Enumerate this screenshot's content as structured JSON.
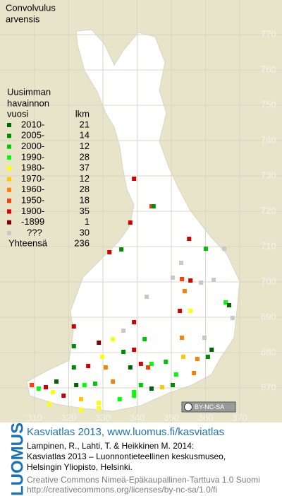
{
  "title": [
    "Convolvulus",
    "arvensis"
  ],
  "legend": {
    "heading": [
      "Uusimman",
      "havainnon",
      "vuosi"
    ],
    "count_heading": "lkm",
    "items": [
      {
        "label": "2010-",
        "count": 21,
        "color": "#006400"
      },
      {
        "label": "2005-",
        "count": 14,
        "color": "#008c00"
      },
      {
        "label": "2000-",
        "count": 12,
        "color": "#00c800"
      },
      {
        "label": "1990-",
        "count": 28,
        "color": "#00ff00"
      },
      {
        "label": "1980-",
        "count": 37,
        "color": "#ffff00"
      },
      {
        "label": "1970-",
        "count": 12,
        "color": "#ffc800"
      },
      {
        "label": "1960-",
        "count": 28,
        "color": "#ff8000"
      },
      {
        "label": "1950-",
        "count": 18,
        "color": "#ff4000"
      },
      {
        "label": "1900-",
        "count": 35,
        "color": "#d20000"
      },
      {
        "label": "-1899",
        "count": 1,
        "color": "#800000"
      },
      {
        "label": "???",
        "count": 30,
        "color": "#c8c8c8"
      }
    ],
    "total_label": "Yhteensä",
    "total": 236
  },
  "map": {
    "north_ticks": [
      770,
      760,
      750,
      740,
      730,
      720,
      710,
      700,
      690,
      680,
      670
    ],
    "east_ticks": [
      310,
      320,
      330,
      340,
      350,
      360,
      370
    ],
    "records": [
      {
        "east": 339.1,
        "north": 729.2,
        "period": 8
      },
      {
        "east": 344.2,
        "north": 721.4,
        "period": 7
      },
      {
        "east": 344.8,
        "north": 721.4,
        "period": 1
      },
      {
        "east": 338.0,
        "north": 716.8,
        "period": 8
      },
      {
        "east": 355.2,
        "north": 712.2,
        "period": 8
      },
      {
        "east": 331.9,
        "north": 708.4,
        "period": 8
      },
      {
        "east": 335.4,
        "north": 709.2,
        "period": 1
      },
      {
        "east": 360.1,
        "north": 709.4,
        "period": 2
      },
      {
        "east": 365.5,
        "north": 709.4,
        "period": 10
      },
      {
        "east": 352.9,
        "north": 705.4,
        "period": 10
      },
      {
        "east": 350.4,
        "north": 701.2,
        "period": 10
      },
      {
        "east": 353.1,
        "north": 700.8,
        "period": 7
      },
      {
        "east": 355.6,
        "north": 700.4,
        "period": 8
      },
      {
        "east": 358.7,
        "north": 699.8,
        "period": 10
      },
      {
        "east": 362.4,
        "north": 700.6,
        "period": 10
      },
      {
        "east": 342.8,
        "north": 695.8,
        "period": 10
      },
      {
        "east": 353.9,
        "north": 697.4,
        "period": 6
      },
      {
        "east": 365.9,
        "north": 694.2,
        "period": 3
      },
      {
        "east": 366.9,
        "north": 693.4,
        "period": 0
      },
      {
        "east": 352.5,
        "north": 691.8,
        "period": 8
      },
      {
        "east": 355.6,
        "north": 691.8,
        "period": 4
      },
      {
        "east": 367.9,
        "north": 689.8,
        "period": 10
      },
      {
        "east": 321.5,
        "north": 687.4,
        "period": 8
      },
      {
        "east": 339.1,
        "north": 688.6,
        "period": 8
      },
      {
        "east": 336.0,
        "north": 686.2,
        "period": 10
      },
      {
        "east": 332.9,
        "north": 683.8,
        "period": 4
      },
      {
        "east": 342.2,
        "north": 683.8,
        "period": 2
      },
      {
        "east": 353.1,
        "north": 684.2,
        "period": 6
      },
      {
        "east": 359.7,
        "north": 684.2,
        "period": 10
      },
      {
        "east": 321.5,
        "north": 681.8,
        "period": 1
      },
      {
        "east": 328.8,
        "north": 682.8,
        "period": 9
      },
      {
        "east": 336.0,
        "north": 680.2,
        "period": 1
      },
      {
        "east": 339.1,
        "north": 680.8,
        "period": 8
      },
      {
        "east": 361.8,
        "north": 680.8,
        "period": 0
      },
      {
        "east": 360.7,
        "north": 678.8,
        "period": 1
      },
      {
        "east": 329.8,
        "north": 678.8,
        "period": 4
      },
      {
        "east": 341.1,
        "north": 676.8,
        "period": 8
      },
      {
        "east": 344.2,
        "north": 676.8,
        "period": 3
      },
      {
        "east": 348.4,
        "north": 677.4,
        "period": 2
      },
      {
        "east": 353.5,
        "north": 678.8,
        "period": 5
      },
      {
        "east": 357.6,
        "north": 678.2,
        "period": 6
      },
      {
        "east": 321.5,
        "north": 675.8,
        "period": 1
      },
      {
        "east": 325.7,
        "north": 676.2,
        "period": 8
      },
      {
        "east": 330.8,
        "north": 675.8,
        "period": 6
      },
      {
        "east": 338.0,
        "north": 675.8,
        "period": 0
      },
      {
        "east": 343.2,
        "north": 675.8,
        "period": 7
      },
      {
        "east": 351.4,
        "north": 673.8,
        "period": 3
      },
      {
        "east": 356.6,
        "north": 674.2,
        "period": 6
      },
      {
        "east": 309.2,
        "north": 670.8,
        "period": 7
      },
      {
        "east": 311.2,
        "north": 669.8,
        "period": 3
      },
      {
        "east": 313.3,
        "north": 670.2,
        "period": 8
      },
      {
        "east": 315.4,
        "north": 668.8,
        "period": 4
      },
      {
        "east": 316.4,
        "north": 671.8,
        "period": 0
      },
      {
        "east": 322.2,
        "north": 670.8,
        "period": 0
      },
      {
        "east": 324.6,
        "north": 670.8,
        "period": 3
      },
      {
        "east": 327.7,
        "north": 671.2,
        "period": 2
      },
      {
        "east": 332.9,
        "north": 671.8,
        "period": 6
      },
      {
        "east": 339.1,
        "north": 668.8,
        "period": 3
      },
      {
        "east": 341.1,
        "north": 670.8,
        "period": 2
      },
      {
        "east": 344.2,
        "north": 669.8,
        "period": 0
      },
      {
        "east": 347.3,
        "north": 670.2,
        "period": 5
      },
      {
        "east": 350.4,
        "north": 670.8,
        "period": 1
      },
      {
        "east": 318.5,
        "north": 667.8,
        "period": 8
      },
      {
        "east": 323.6,
        "north": 666.8,
        "period": 5
      },
      {
        "east": 328.8,
        "north": 665.8,
        "period": 4
      },
      {
        "east": 334.9,
        "north": 666.8,
        "period": 3
      },
      {
        "east": 314.3,
        "north": 665.4,
        "period": 4
      },
      {
        "east": 323.6,
        "north": 663.8,
        "period": 4
      },
      {
        "east": 328.8,
        "north": 664.2,
        "period": 4
      },
      {
        "east": 339.1,
        "north": 667.8,
        "period": 3
      }
    ]
  },
  "license_badge": "BY-NC-SA",
  "footer": {
    "brand": "LUOMUS",
    "headline": "Kasviatlas 2013, www.luomus.fi/kasviatlas",
    "citation": [
      "Lampinen, R., Lahti, T. & Heikkinen M. 2014:",
      "Kasviatlas 2013 – Luonnontieteellinen keskusmuseo,",
      "Helsingin Yliopisto, Helsinki."
    ],
    "license": [
      "Creative Commons Nimeä-Epäkaupallinen-Tarttuva 1.0 Suomi",
      "http://creativecommons.org/licenses/by-nc-sa/1.0/fi"
    ]
  }
}
